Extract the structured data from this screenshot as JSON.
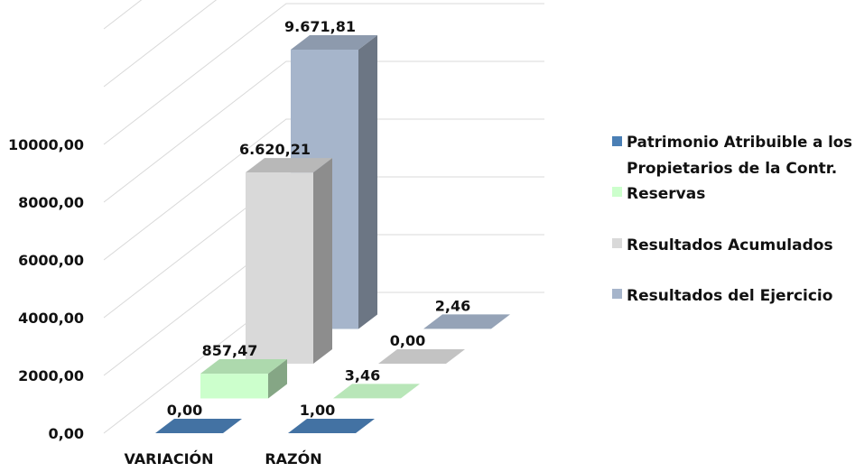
{
  "chart_data": {
    "type": "bar",
    "categories": [
      "VARIACIÓN",
      "RAZÓN"
    ],
    "series": [
      {
        "name": "Patrimonio Atribuible a los Propietarios de la Contr.",
        "values": [
          0.0,
          1.0
        ],
        "labels": [
          "0,00",
          "1,00"
        ],
        "color": "#4a7fb5"
      },
      {
        "name": "Reservas",
        "values": [
          857.47,
          3.46
        ],
        "labels": [
          "857,47",
          "3,46"
        ],
        "color": "#ccffcc"
      },
      {
        "name": "Resultados Acumulados",
        "values": [
          6620.21,
          0.0
        ],
        "labels": [
          "6.620,21",
          "0,00"
        ],
        "color": "#d9d9d9"
      },
      {
        "name": "Resultados del Ejercicio",
        "values": [
          9671.81,
          2.46
        ],
        "labels": [
          "9.671,81",
          "2,46"
        ],
        "color": "#a6b5cb"
      }
    ],
    "yticks": [
      "0,00",
      "2000,00",
      "4000,00",
      "6000,00",
      "8000,00",
      "10000,00"
    ],
    "ylim": [
      0,
      10000
    ],
    "legend_position": "right",
    "style": "3d-bar"
  }
}
